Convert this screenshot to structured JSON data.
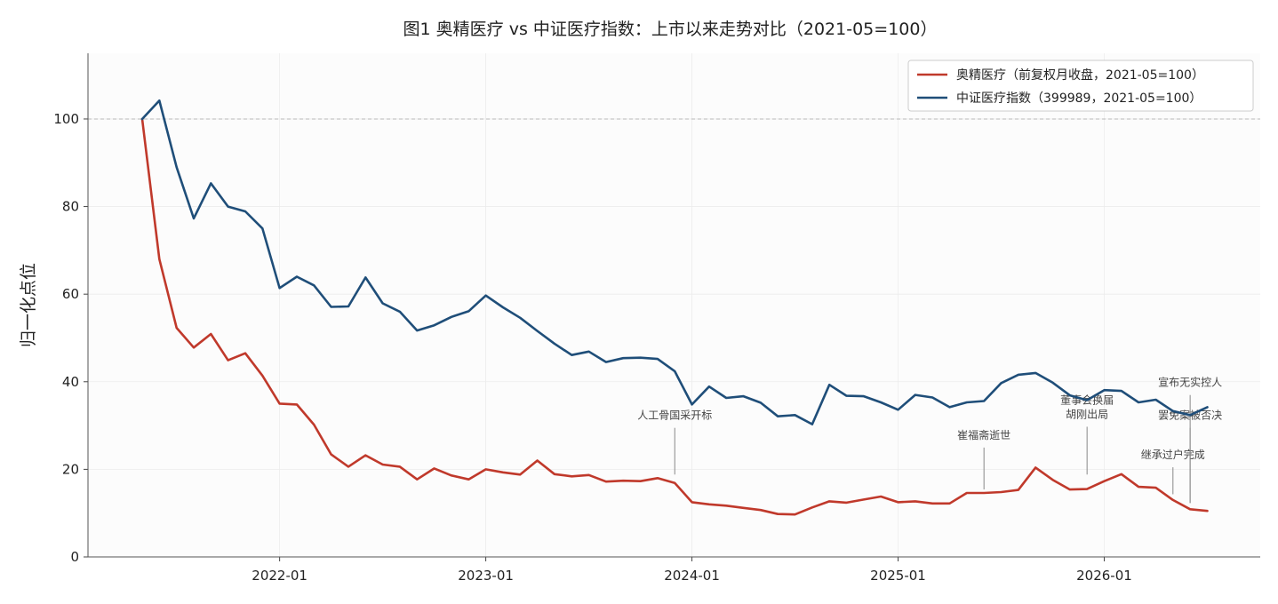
{
  "chart_data": {
    "type": "line",
    "title": "图1  奥精医疗 vs 中证医疗指数：上市以来走势对比（2021-05=100）",
    "xlabel": "",
    "ylabel": "归一化点位",
    "ylim": [
      0,
      115
    ],
    "yticks": [
      0,
      20,
      40,
      60,
      80,
      100
    ],
    "xticks": [
      "2022-01",
      "2023-01",
      "2024-01",
      "2025-01",
      "2026-01"
    ],
    "x": [
      "2021-05",
      "2021-06",
      "2021-07",
      "2021-08",
      "2021-09",
      "2021-10",
      "2021-11",
      "2021-12",
      "2022-01",
      "2022-02",
      "2022-03",
      "2022-04",
      "2022-05",
      "2022-06",
      "2022-07",
      "2022-08",
      "2022-09",
      "2022-10",
      "2022-11",
      "2022-12",
      "2023-01",
      "2023-02",
      "2023-03",
      "2023-04",
      "2023-05",
      "2023-06",
      "2023-07",
      "2023-08",
      "2023-09",
      "2023-10",
      "2023-11",
      "2023-12",
      "2024-01",
      "2024-02",
      "2024-03",
      "2024-04",
      "2024-05",
      "2024-06",
      "2024-07",
      "2024-08",
      "2024-09",
      "2024-10",
      "2024-11",
      "2024-12",
      "2025-01",
      "2025-02",
      "2025-03",
      "2025-04",
      "2025-05",
      "2025-06",
      "2025-07",
      "2025-08",
      "2025-09",
      "2025-10",
      "2025-11",
      "2025-12",
      "2026-01",
      "2026-02",
      "2026-03",
      "2026-04",
      "2026-05",
      "2026-06",
      "2026-07"
    ],
    "reference_line": 100,
    "grid": true,
    "legend_position": "top-right",
    "series": [
      {
        "name": "奥精医疗（前复权月收盘，2021-05=100）",
        "color": "#c0392b",
        "values": [
          100,
          68.0,
          52.3,
          47.8,
          50.9,
          44.9,
          46.5,
          41.4,
          35.0,
          34.8,
          30.2,
          23.4,
          20.6,
          23.2,
          21.1,
          20.6,
          17.7,
          20.2,
          18.6,
          17.7,
          20.0,
          19.3,
          18.8,
          22.0,
          18.9,
          18.4,
          18.7,
          17.2,
          17.4,
          17.3,
          18.0,
          16.9,
          12.5,
          12.0,
          11.7,
          11.2,
          10.7,
          9.8,
          9.7,
          11.3,
          12.7,
          12.4,
          13.1,
          13.8,
          12.5,
          12.7,
          12.2,
          12.2,
          14.6,
          14.6,
          14.8,
          15.3,
          20.4,
          17.6,
          15.4,
          15.5,
          17.3,
          18.9,
          16.0,
          15.8,
          13.0,
          10.9,
          10.5
        ]
      },
      {
        "name": "中证医疗指数（399989，2021-05=100）",
        "color": "#1f4e79",
        "values": [
          100,
          104.2,
          89.0,
          77.3,
          85.3,
          80.0,
          78.9,
          75.0,
          61.4,
          64.0,
          62.0,
          57.1,
          57.2,
          63.8,
          57.9,
          56.0,
          51.7,
          52.9,
          54.8,
          56.1,
          59.7,
          57.0,
          54.6,
          51.6,
          48.7,
          46.1,
          46.9,
          44.5,
          45.4,
          45.5,
          45.2,
          42.4,
          34.8,
          38.9,
          36.3,
          36.7,
          35.2,
          32.1,
          32.4,
          30.3,
          39.3,
          36.8,
          36.7,
          35.3,
          33.6,
          37.0,
          36.4,
          34.2,
          35.3,
          35.6,
          39.7,
          41.6,
          42.0,
          39.8,
          36.9,
          35.8,
          38.1,
          37.9,
          35.3,
          35.9,
          33.3,
          32.4,
          34.2
        ]
      }
    ],
    "annotations": [
      {
        "text": "人工骨国采开标",
        "x": "2023-12",
        "y": 18.0,
        "label_y": 31.5
      },
      {
        "text": "崔福斋逝世",
        "x": "2025-06",
        "y": 14.6,
        "label_y": 27.0
      },
      {
        "text": "董事会换届\n胡刚出局",
        "x": "2025-12",
        "y": 18.0,
        "label_y": 35.0
      },
      {
        "text": "继承过户完成",
        "x": "2026-05",
        "y": 13.5,
        "label_y": 22.5
      },
      {
        "text": "罢免案被否决",
        "x": "2026-06",
        "y": 11.5,
        "label_y": 31.5
      },
      {
        "text": "宣布无实控人",
        "x": "2026-06",
        "y": 11.5,
        "label_y": 39.0
      }
    ]
  }
}
